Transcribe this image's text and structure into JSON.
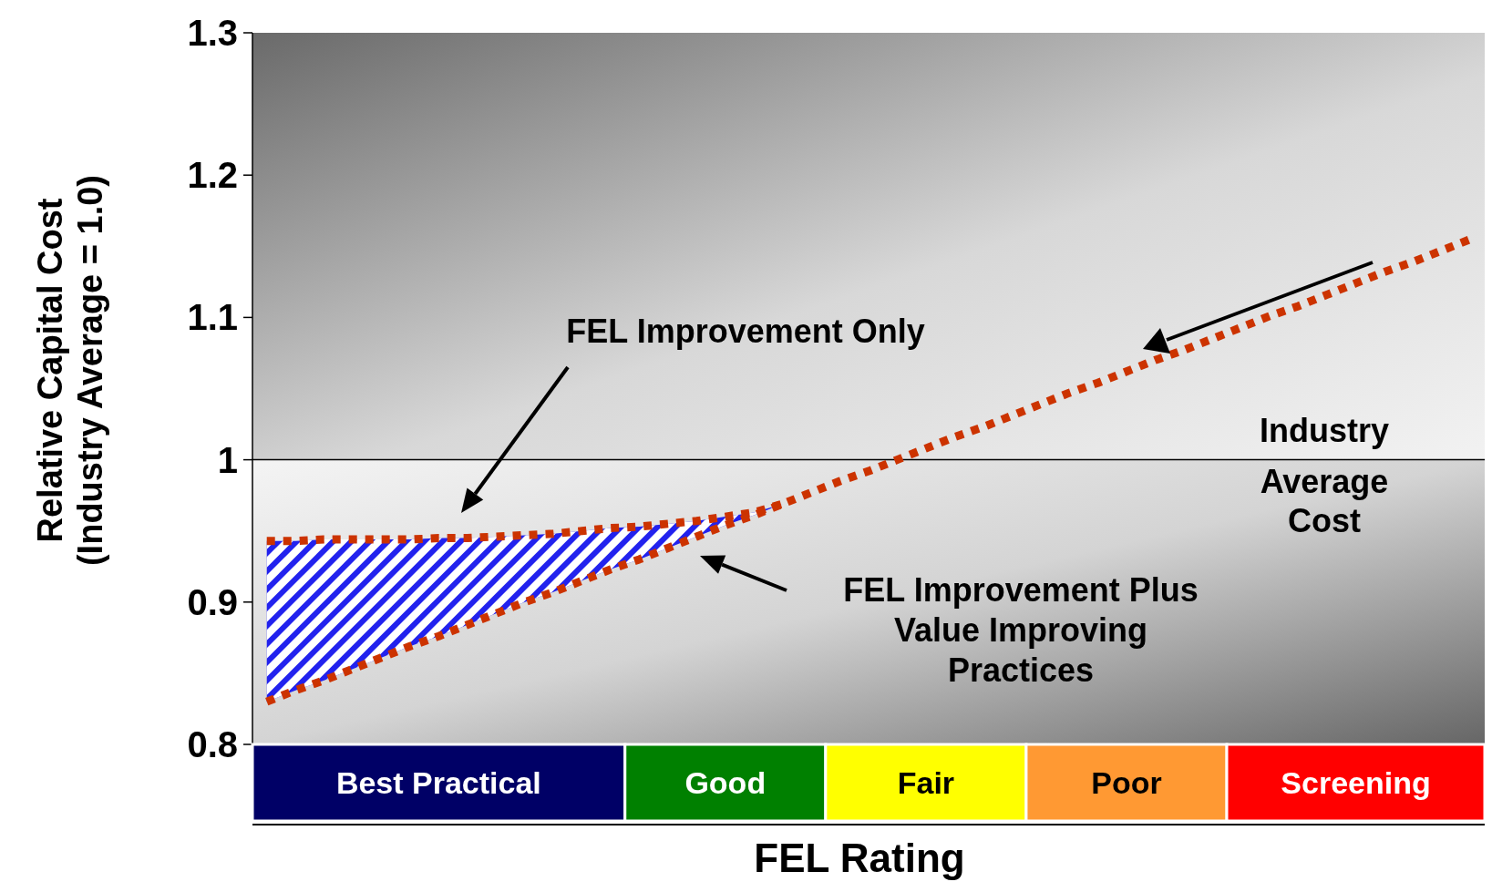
{
  "chart_data": {
    "type": "line",
    "xlabel": "FEL Rating",
    "ylabel": "Relative Capital Cost (Industry Average = 1.0)",
    "ylim": [
      0.8,
      1.3
    ],
    "yticks": [
      0.8,
      0.9,
      1,
      1.1,
      1.2,
      1.3
    ],
    "line_style": "dotted",
    "categories": [
      null,
      null,
      null,
      null,
      null,
      null,
      "Best Practical",
      null,
      null,
      null,
      null,
      null,
      null,
      null,
      null,
      null,
      "Good",
      null,
      null,
      null,
      null,
      null,
      null,
      "Fair",
      null,
      null,
      null,
      null,
      null,
      null,
      "Poor",
      null,
      null,
      null,
      null,
      null,
      null,
      null,
      "Screening",
      null,
      null,
      null,
      null
    ],
    "series": [
      {
        "color": "#cc3300",
        "values": [
          0.943,
          0.943,
          0.944,
          0.944,
          0.944,
          0.944,
          0.945,
          0.945,
          0.946,
          0.947,
          0.948,
          0.95,
          0.952,
          0.953,
          0.955,
          0.957,
          0.96,
          0.963,
          0.969,
          null,
          null,
          null,
          null,
          null,
          null,
          null,
          null,
          null,
          null,
          null,
          null,
          null,
          null,
          null,
          null,
          null,
          null,
          null,
          null,
          null,
          null,
          null,
          null
        ],
        "lower": [
          0.83,
          0.838,
          0.845,
          0.853,
          0.861,
          0.869,
          0.876,
          0.884,
          0.892,
          0.9,
          0.907,
          0.915,
          0.923,
          0.93,
          0.938,
          0.946,
          0.954,
          0.961,
          0.969,
          null,
          null,
          null,
          null,
          null,
          null,
          null,
          null,
          null,
          null,
          null,
          null,
          null,
          null,
          null,
          null,
          null,
          null,
          null,
          null,
          null,
          null,
          null,
          null
        ],
        "upper": [
          0.943,
          0.943,
          0.944,
          0.944,
          0.944,
          0.944,
          0.945,
          0.945,
          0.946,
          0.947,
          0.948,
          0.95,
          0.952,
          0.953,
          0.955,
          0.957,
          0.96,
          0.963,
          0.969,
          null,
          null,
          null,
          null,
          null,
          null,
          null,
          null,
          null,
          null,
          null,
          null,
          null,
          null,
          null,
          null,
          null,
          null,
          null,
          null,
          null,
          null,
          null,
          null
        ]
      },
      {
        "color": "#cc3300",
        "values": [
          0.83,
          0.838,
          0.845,
          0.853,
          0.861,
          0.869,
          0.876,
          0.884,
          0.892,
          0.9,
          0.907,
          0.915,
          0.923,
          0.93,
          0.938,
          0.946,
          0.954,
          0.961,
          0.969,
          0.977,
          0.985,
          0.992,
          1.0,
          1.008,
          1.016,
          1.023,
          1.031,
          1.039,
          1.047,
          1.054,
          1.062,
          1.07,
          1.077,
          1.085,
          1.093,
          1.101,
          1.108,
          1.116,
          1.124,
          1.132,
          1.139,
          1.147,
          1.155
        ]
      }
    ],
    "ref_lines": [
      {
        "axis": "y",
        "value": 1,
        "label": "Industry Average Cost",
        "color": "#000000"
      }
    ],
    "annotations": [
      "FEL Improvement Only",
      "FEL Improvement Plus Value Improving Practices"
    ]
  }
}
